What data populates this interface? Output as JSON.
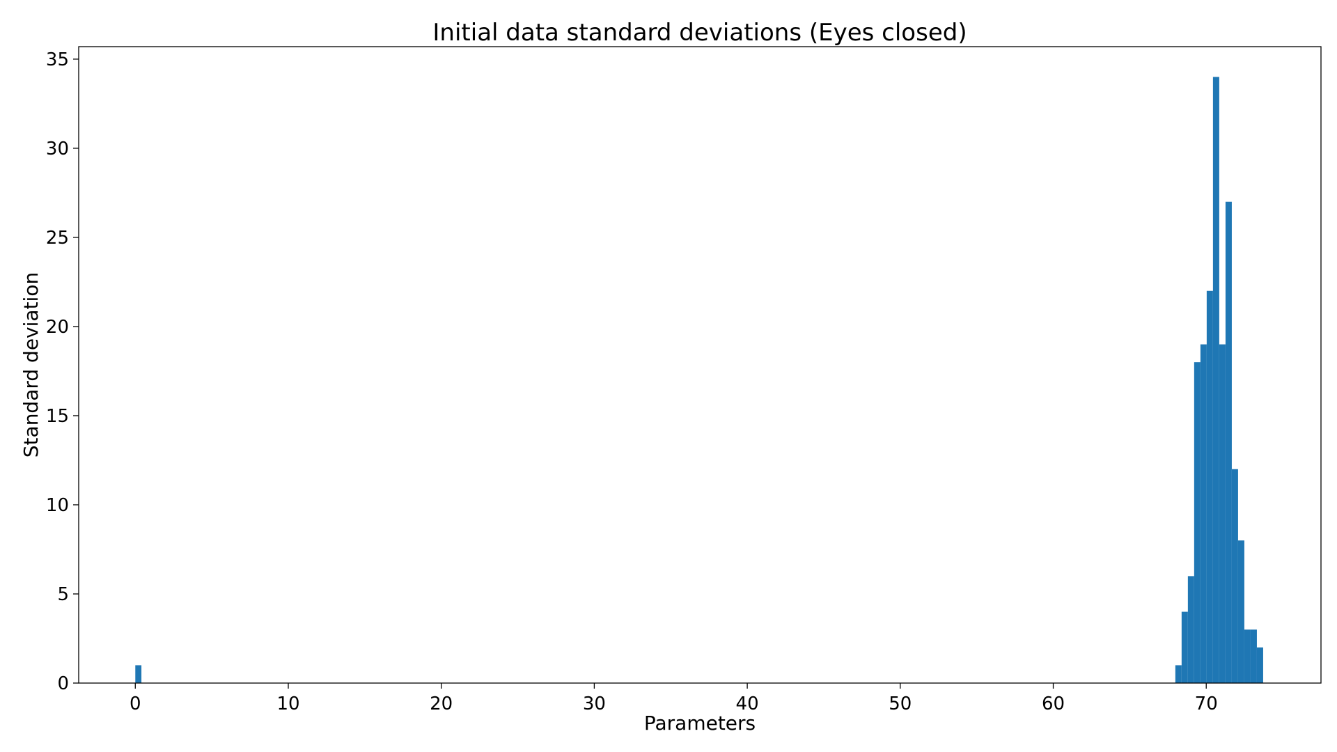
{
  "chart_data": {
    "type": "bar",
    "title": "Initial data standard deviations (Eyes closed)",
    "xlabel": "Parameters",
    "ylabel": "Standard deviation",
    "xlim": [
      -3.7,
      77.5
    ],
    "ylim": [
      0,
      35.7
    ],
    "xticks": [
      0,
      10,
      20,
      30,
      40,
      50,
      60,
      70
    ],
    "yticks": [
      0,
      5,
      10,
      15,
      20,
      25,
      30,
      35
    ],
    "bar_color": "#1f77b4",
    "grid": false,
    "bars": [
      {
        "x0": 0.0,
        "x1": 0.4,
        "value": 1
      },
      {
        "x0": 67.98,
        "x1": 68.39,
        "value": 1
      },
      {
        "x0": 68.39,
        "x1": 68.8,
        "value": 4
      },
      {
        "x0": 68.8,
        "x1": 69.21,
        "value": 6
      },
      {
        "x0": 69.21,
        "x1": 69.62,
        "value": 18
      },
      {
        "x0": 69.62,
        "x1": 70.03,
        "value": 19
      },
      {
        "x0": 70.03,
        "x1": 70.44,
        "value": 22
      },
      {
        "x0": 70.44,
        "x1": 70.85,
        "value": 34
      },
      {
        "x0": 70.85,
        "x1": 71.26,
        "value": 19
      },
      {
        "x0": 71.26,
        "x1": 71.67,
        "value": 27
      },
      {
        "x0": 71.67,
        "x1": 72.08,
        "value": 12
      },
      {
        "x0": 72.08,
        "x1": 72.49,
        "value": 8
      },
      {
        "x0": 72.49,
        "x1": 72.9,
        "value": 3
      },
      {
        "x0": 72.9,
        "x1": 73.31,
        "value": 3
      },
      {
        "x0": 73.31,
        "x1": 73.72,
        "value": 2
      }
    ]
  }
}
